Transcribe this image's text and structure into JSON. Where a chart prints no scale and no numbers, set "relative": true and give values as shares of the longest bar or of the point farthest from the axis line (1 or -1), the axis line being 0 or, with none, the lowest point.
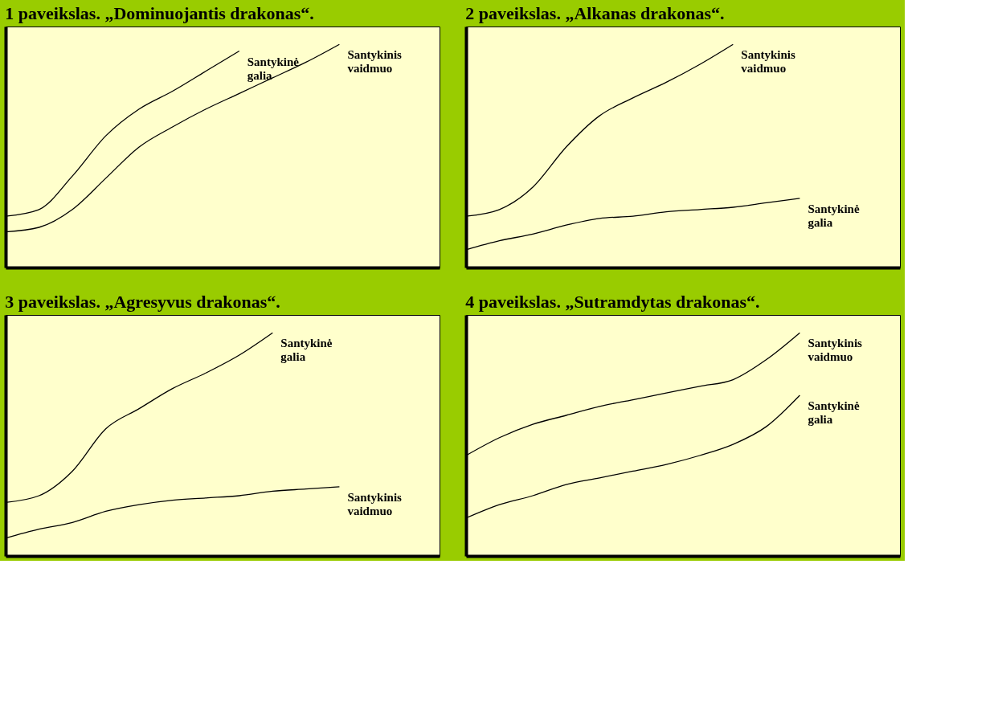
{
  "chart_data": [
    {
      "type": "line",
      "title": "1 paveikslas. „Dominuojantis drakonas“.",
      "relative": true,
      "tick_labels": false,
      "grid": false,
      "categories": [
        null,
        null,
        null,
        null,
        null,
        null,
        null,
        null,
        null,
        null,
        null
      ],
      "series": [
        {
          "name": "Santykinė galia",
          "color": "#000000",
          "values": [
            0.23,
            0.26,
            0.41,
            0.59,
            0.71,
            0.79,
            0.88,
            0.97,
            null,
            null,
            null
          ]
        },
        {
          "name": "Santykinis vaidmuo",
          "color": "#000000",
          "values": [
            0.16,
            0.18,
            0.26,
            0.4,
            0.54,
            0.63,
            0.71,
            0.78,
            0.85,
            0.92,
            1.0
          ]
        }
      ]
    },
    {
      "type": "line",
      "title": "2 paveikslas. „Alkanas drakonas“.",
      "relative": true,
      "tick_labels": false,
      "grid": false,
      "categories": [
        null,
        null,
        null,
        null,
        null,
        null,
        null,
        null,
        null,
        null,
        null
      ],
      "series": [
        {
          "name": "Santykinis vaidmuo",
          "color": "#000000",
          "values": [
            0.23,
            0.26,
            0.36,
            0.54,
            0.68,
            0.76,
            0.83,
            0.91,
            1.0,
            null,
            null
          ]
        },
        {
          "name": "Santykinė galia",
          "color": "#000000",
          "values": [
            0.08,
            0.12,
            0.15,
            0.19,
            0.22,
            0.23,
            0.25,
            0.26,
            0.27,
            0.29,
            0.31
          ]
        }
      ]
    },
    {
      "type": "line",
      "title": "3 paveikslas. „Agresyvus drakonas“.",
      "relative": true,
      "tick_labels": false,
      "grid": false,
      "categories": [
        null,
        null,
        null,
        null,
        null,
        null,
        null,
        null,
        null,
        null,
        null
      ],
      "series": [
        {
          "name": "Santykinė galia",
          "color": "#000000",
          "values": [
            0.24,
            0.27,
            0.38,
            0.57,
            0.66,
            0.75,
            0.82,
            0.9,
            1.0,
            null,
            null
          ]
        },
        {
          "name": "Santykinis vaidmuo",
          "color": "#000000",
          "values": [
            0.08,
            0.12,
            0.15,
            0.2,
            0.23,
            0.25,
            0.26,
            0.27,
            0.29,
            0.3,
            0.31
          ]
        }
      ]
    },
    {
      "type": "line",
      "title": "4 paveikslas. „Sutramdytas drakonas“.",
      "relative": true,
      "tick_labels": false,
      "grid": false,
      "categories": [
        null,
        null,
        null,
        null,
        null,
        null,
        null,
        null,
        null,
        null,
        null
      ],
      "series": [
        {
          "name": "Santykinis vaidmuo",
          "color": "#000000",
          "values": [
            0.45,
            0.53,
            0.59,
            0.63,
            0.67,
            0.7,
            0.73,
            0.76,
            0.79,
            0.88,
            1.0
          ]
        },
        {
          "name": "Santykinė galia",
          "color": "#000000",
          "values": [
            0.17,
            0.23,
            0.27,
            0.32,
            0.35,
            0.38,
            0.41,
            0.45,
            0.5,
            0.58,
            0.72
          ]
        }
      ]
    }
  ]
}
